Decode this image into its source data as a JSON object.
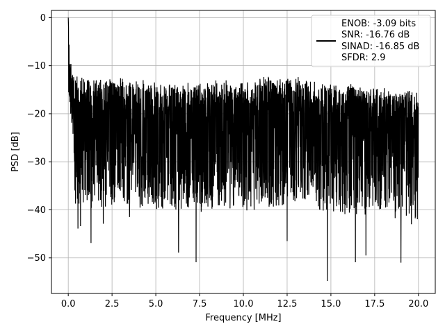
{
  "chart_data": {
    "type": "line",
    "title": "",
    "xlabel": "Frequency [MHz]",
    "ylabel": "PSD [dB]",
    "xlim": [
      -0.96,
      20.96
    ],
    "ylim": [
      -57.4,
      1.5
    ],
    "xticks": [
      "0.0",
      "2.5",
      "5.0",
      "7.5",
      "10.0",
      "12.5",
      "15.0",
      "17.5",
      "20.0"
    ],
    "xtick_values": [
      0,
      2.5,
      5,
      7.5,
      10,
      12.5,
      15,
      17.5,
      20
    ],
    "yticks": [
      "0",
      "−10",
      "−20",
      "−30",
      "−40",
      "−50"
    ],
    "ytick_values": [
      0,
      -10,
      -20,
      -30,
      -40,
      -50
    ],
    "grid": true,
    "legend_position": "top-right",
    "series": [
      {
        "color": "#000000",
        "description": "dense noise spectrum, 0 to 20 MHz; peak 0 dB at DC, floor mostly between -35 and -12 dB",
        "x_range": [
          0,
          20
        ],
        "envelope_upper": [
          [
            0,
            0
          ],
          [
            0.1,
            -7
          ],
          [
            0.3,
            -11
          ],
          [
            1,
            -12
          ],
          [
            3,
            -12.5
          ],
          [
            8,
            -13
          ],
          [
            10,
            -13
          ],
          [
            12,
            -11.5
          ],
          [
            15,
            -13
          ],
          [
            20,
            -15
          ]
        ],
        "notable_dips": [
          [
            0.55,
            -43.9
          ],
          [
            0.7,
            -43.4
          ],
          [
            1.3,
            -46.9
          ],
          [
            2.0,
            -42.9
          ],
          [
            3.5,
            -41.5
          ],
          [
            6.3,
            -48.9
          ],
          [
            7.3,
            -50.9
          ],
          [
            12.5,
            -46.5
          ],
          [
            14.8,
            -54.8
          ],
          [
            16.4,
            -50.9
          ],
          [
            17.0,
            -49.5
          ],
          [
            19.0,
            -51.0
          ],
          [
            19.6,
            -43
          ]
        ]
      }
    ],
    "legend": {
      "entries": [
        {
          "label": "ENOB: -3.09 bits"
        },
        {
          "label": "SNR: -16.76 dB"
        },
        {
          "label": "SINAD: -16.85 dB"
        },
        {
          "label": "SFDR: 2.9"
        }
      ]
    }
  }
}
